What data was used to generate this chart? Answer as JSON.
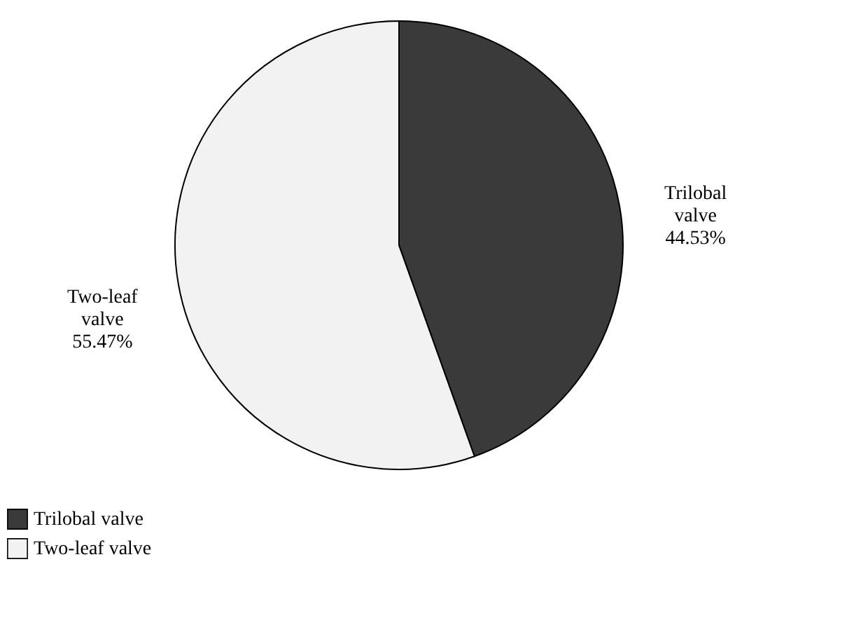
{
  "chart_data": {
    "type": "pie",
    "categories": [
      "Trilobal valve",
      "Two-leaf valve"
    ],
    "values": [
      44.53,
      55.47
    ],
    "colors": [
      "#3a3a3a",
      "#f2f2f2"
    ],
    "value_labels": [
      "44.53%",
      "55.47%"
    ],
    "legend": "bottom"
  }
}
